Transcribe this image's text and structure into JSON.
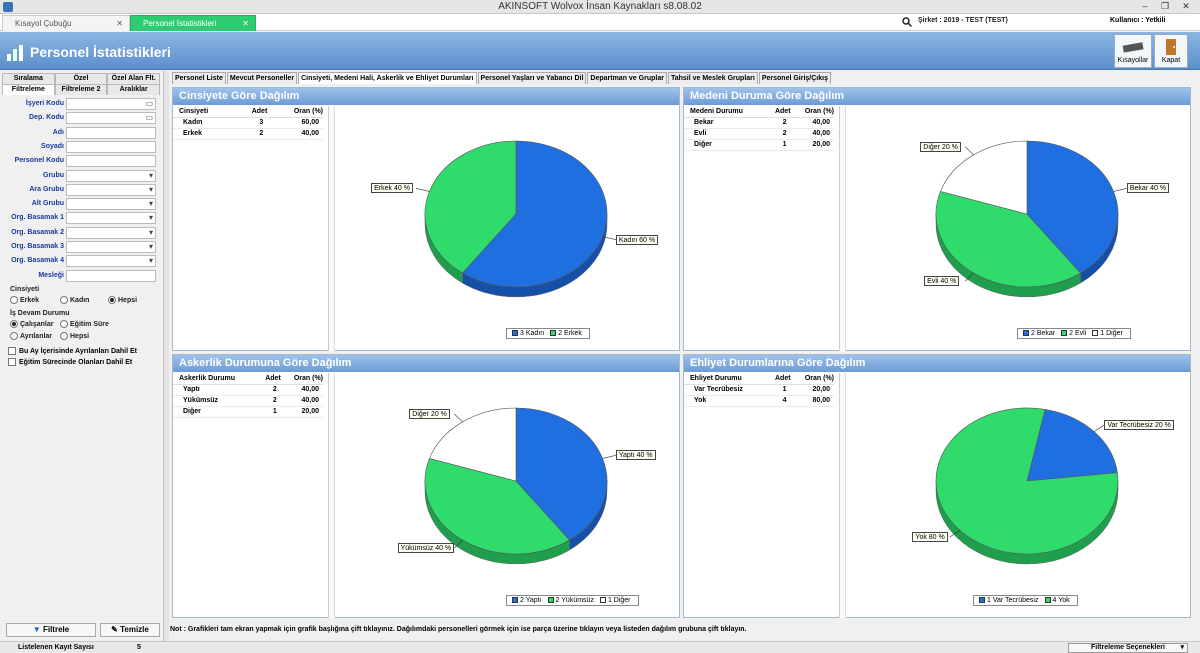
{
  "window": {
    "title": "AKINSOFT Wolvox İnsan Kaynakları s8.08.02",
    "minimize": "–",
    "restore": "❐",
    "close": "✕"
  },
  "doc_tabs": [
    {
      "label": "Kısayol Çubuğu"
    },
    {
      "label": "Personel İstatistikleri"
    }
  ],
  "company": "Şirket : 2019 - TEST (TEST)",
  "user": "Kullanıcı : Yetkili",
  "header": {
    "title": "Personel İstatistikleri",
    "shortcuts": "Kısayollar",
    "close": "Kapat"
  },
  "left_tabs_row1": [
    "Sıralama",
    "Özel",
    "Özel Alan Flt."
  ],
  "left_tabs_row2": [
    "Filtreleme",
    "Filtreleme 2",
    "Aralıklar"
  ],
  "filters": [
    {
      "label": "İşyeri Kodu",
      "icon": "ellipsis"
    },
    {
      "label": "Dep. Kodu",
      "icon": "ellipsis"
    },
    {
      "label": "Adı",
      "icon": ""
    },
    {
      "label": "Soyadı",
      "icon": ""
    },
    {
      "label": "Personel Kodu",
      "icon": ""
    },
    {
      "label": "Grubu",
      "icon": "dropdown"
    },
    {
      "label": "Ara Grubu",
      "icon": "dropdown"
    },
    {
      "label": "Alt Grubu",
      "icon": "dropdown"
    },
    {
      "label": "Org. Basamak 1",
      "icon": "dropdown"
    },
    {
      "label": "Org. Basamak 2",
      "icon": "dropdown"
    },
    {
      "label": "Org. Basamak 3",
      "icon": "dropdown"
    },
    {
      "label": "Org. Basamak 4",
      "icon": "dropdown"
    },
    {
      "label": "Mesleği",
      "icon": ""
    }
  ],
  "gender": {
    "label": "Cinsiyeti",
    "options": [
      "Erkek",
      "Kadın",
      "Hepsi"
    ],
    "selected": "Hepsi"
  },
  "work": {
    "label": "İş Devam Durumu",
    "options": [
      "Çalışanlar",
      "Eğitim Süre",
      "Ayrılanlar",
      "Hepsi"
    ],
    "selected": "Çalışanlar"
  },
  "checks": [
    "Bu Ay İçerisinde Ayrılanları Dahil Et",
    "Eğitim Sürecinde Olanları Dahil Et"
  ],
  "buttons": {
    "filter": "Filtrele",
    "clear": "Temizle"
  },
  "page_tabs": [
    "Personel Liste",
    "Mevcut Personeller",
    "Cinsiyeti, Medeni Hali, Askerlik ve Ehliyet Durumları",
    "Personel Yaşları ve Yabancı Dil",
    "Departman ve Gruplar",
    "Tahsil ve Meslek Grupları",
    "Personel Giriş/Çıkış"
  ],
  "active_page_tab": 2,
  "note": "Not : Grafikleri tam ekran yapmak için grafik başlığına çift tıklayınız. Dağılımdaki personelleri görmek için ise parça üzerine tıklayın veya listeden dağılım grubuna çift tıklayın.",
  "status": {
    "label": "Listelenen Kayıt Sayısı",
    "value": "5",
    "filter_options": "Filtreleme Seçenekleri"
  },
  "colors": {
    "blue": "#1f6fe0",
    "green": "#2edb6b",
    "white": "#ffffff"
  },
  "chart_data": [
    {
      "type": "pie",
      "title": "Cinsiyete Göre Dağılım",
      "table": {
        "headers": [
          "Cinsiyeti",
          "Adet",
          "Oran (%)"
        ],
        "rows": [
          [
            "Kadın",
            "3",
            "60,00"
          ],
          [
            "Erkek",
            "2",
            "40,00"
          ]
        ]
      },
      "slices": [
        {
          "name": "Kadın",
          "value": 3,
          "label": "Kadın 60 %",
          "color": "#1f6fe0"
        },
        {
          "name": "Erkek",
          "value": 2,
          "label": "Erkek 40 %",
          "color": "#2edb6b"
        }
      ],
      "legend": [
        "3 Kadın",
        "2 Erkek"
      ]
    },
    {
      "type": "pie",
      "title": "Medeni Duruma Göre Dağılım",
      "table": {
        "headers": [
          "Medeni Durumu",
          "Adet",
          "Oran (%)"
        ],
        "rows": [
          [
            "Bekar",
            "2",
            "40,00"
          ],
          [
            "Evli",
            "2",
            "40,00"
          ],
          [
            "Diğer",
            "1",
            "20,00"
          ]
        ]
      },
      "slices": [
        {
          "name": "Bekar",
          "value": 2,
          "label": "Bekar 40 %",
          "color": "#1f6fe0"
        },
        {
          "name": "Evli",
          "value": 2,
          "label": "Evli 40 %",
          "color": "#2edb6b"
        },
        {
          "name": "Diğer",
          "value": 1,
          "label": "Diğer 20 %",
          "color": "#ffffff"
        }
      ],
      "legend": [
        "2 Bekar",
        "2 Evli",
        "1 Diğer"
      ]
    },
    {
      "type": "pie",
      "title": "Askerlik Durumuna Göre Dağılım",
      "table": {
        "headers": [
          "Askerlik Durumu",
          "Adet",
          "Oran (%)"
        ],
        "rows": [
          [
            "Yaptı",
            "2",
            "40,00"
          ],
          [
            "Yükümsüz",
            "2",
            "40,00"
          ],
          [
            "Diğer",
            "1",
            "20,00"
          ]
        ]
      },
      "slices": [
        {
          "name": "Yaptı",
          "value": 2,
          "label": "Yaptı 40 %",
          "color": "#1f6fe0"
        },
        {
          "name": "Yükümsüz",
          "value": 2,
          "label": "Yükümsüz 40 %",
          "color": "#2edb6b"
        },
        {
          "name": "Diğer",
          "value": 1,
          "label": "Diğer 20 %",
          "color": "#ffffff"
        }
      ],
      "legend": [
        "2 Yaptı",
        "2 Yükümsüz",
        "1 Diğer"
      ]
    },
    {
      "type": "pie",
      "title": "Ehliyet Durumlarına Göre Dağılım",
      "table": {
        "headers": [
          "Ehliyet Durumu",
          "Adet",
          "Oran (%)"
        ],
        "rows": [
          [
            "Var Tecrübesiz",
            "1",
            "20,00"
          ],
          [
            "Yok",
            "4",
            "80,00"
          ]
        ]
      },
      "slices": [
        {
          "name": "Var Tecrübesiz",
          "value": 1,
          "label": "Var Tecrübesiz 20 %",
          "color": "#1f6fe0"
        },
        {
          "name": "Yok",
          "value": 4,
          "label": "Yok 80 %",
          "color": "#2edb6b"
        }
      ],
      "legend": [
        "1 Var Tecrübesiz",
        "4 Yok"
      ]
    }
  ]
}
